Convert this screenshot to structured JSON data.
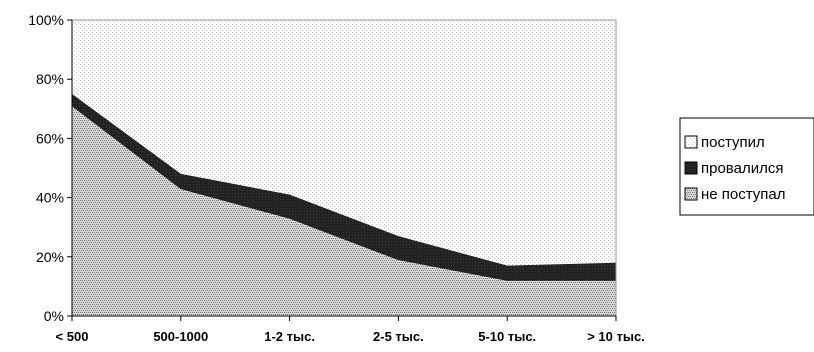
{
  "chart_data": {
    "type": "area",
    "stacked": true,
    "normalized_percent": true,
    "categories": [
      "< 500",
      "500-1000",
      "1-2 тыс.",
      "2-5 тыс.",
      "5-10 тыс.",
      "> 10 тыс."
    ],
    "series": [
      {
        "name": "не поступал",
        "values": [
          71,
          43,
          33,
          19,
          12,
          12
        ],
        "pattern": "dense-dots"
      },
      {
        "name": "провалился",
        "values": [
          4,
          5,
          8,
          8,
          5,
          6
        ],
        "pattern": "solid-dark"
      },
      {
        "name": "поступил",
        "values": [
          25,
          52,
          59,
          73,
          83,
          82
        ],
        "pattern": "light-dots"
      }
    ],
    "y_ticks": [
      "0%",
      "20%",
      "40%",
      "60%",
      "80%",
      "100%"
    ],
    "ylim": [
      0,
      100
    ],
    "grid": false,
    "legend_position": "right",
    "legend_order": [
      "поступил",
      "провалился",
      "не поступал"
    ],
    "colors": {
      "dark_band": "#222222",
      "light_dots": "#bdbdbd",
      "dense_dots": "#8f8f8f",
      "axis": "#000000",
      "background": "#ffffff"
    }
  }
}
